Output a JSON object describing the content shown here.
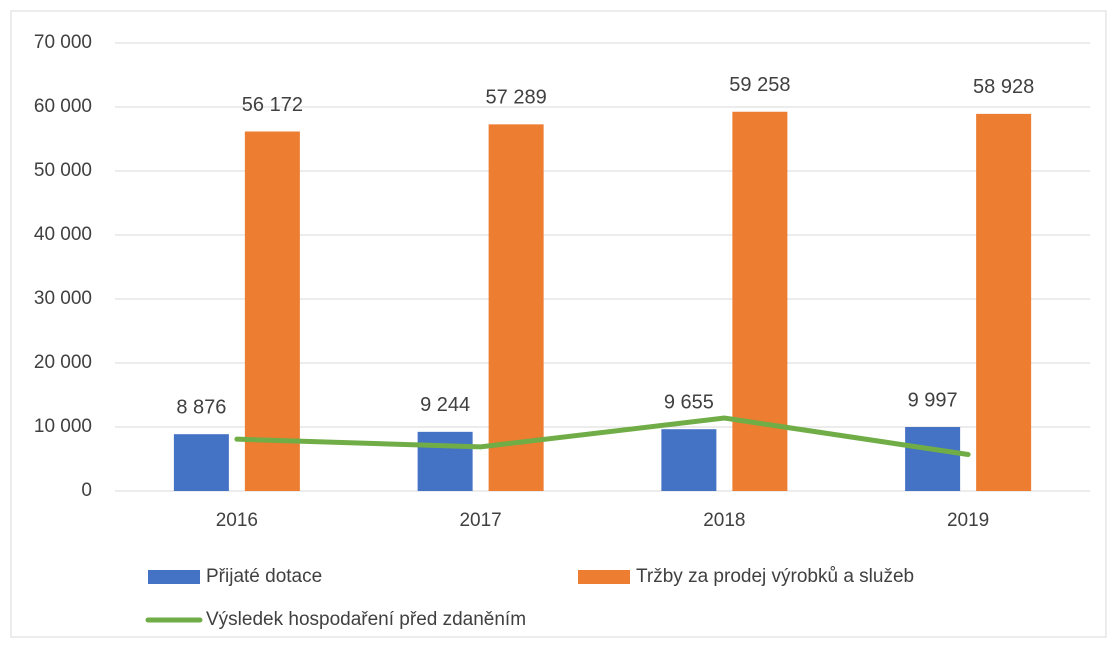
{
  "chart_data": {
    "type": "bar",
    "categories": [
      "2016",
      "2017",
      "2018",
      "2019"
    ],
    "series": [
      {
        "name": "Přijaté dotace",
        "color": "#4472c4",
        "values": [
          8876,
          9244,
          9655,
          9997
        ],
        "value_labels": [
          "8 876",
          "9 244",
          "9 655",
          "9 997"
        ]
      },
      {
        "name": "Tržby za prodej výrobků a služeb",
        "color": "#ed7d31",
        "values": [
          56172,
          57289,
          59258,
          58928
        ],
        "value_labels": [
          "56 172",
          "57 289",
          "59 258",
          "58 928"
        ]
      },
      {
        "name": "Výsledek hospodaření před zdaněním",
        "color": "#70ad47",
        "type": "line",
        "values": [
          8100,
          6900,
          11400,
          5700
        ]
      }
    ],
    "ylim": [
      0,
      70000
    ],
    "yticks": [
      0,
      {
        "value": 10000,
        "label": "10 000"
      },
      {
        "value": 20000,
        "label": "20 000"
      },
      {
        "value": 30000,
        "label": "30 000"
      },
      {
        "value": 40000,
        "label": "40 000"
      },
      {
        "value": 50000,
        "label": "50 000"
      },
      {
        "value": 60000,
        "label": "60 000"
      },
      {
        "value": 70000,
        "label": "70 000"
      }
    ],
    "grid": true,
    "legend": "bottom"
  }
}
